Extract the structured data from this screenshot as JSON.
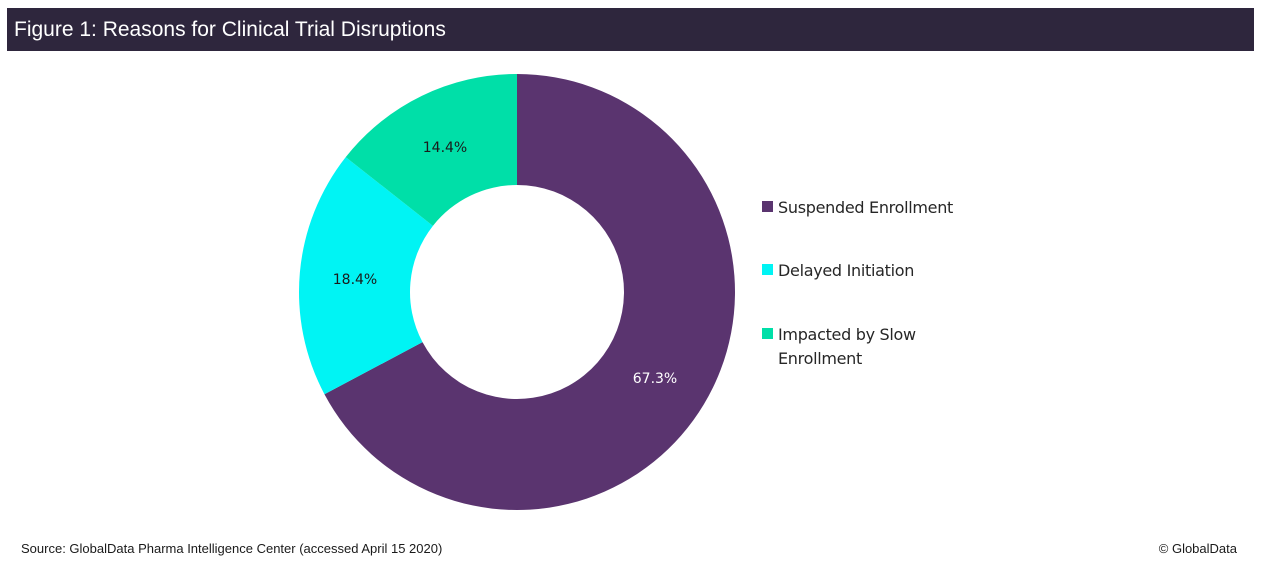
{
  "header": {
    "title": "Figure 1: Reasons for Clinical Trial Disruptions"
  },
  "chart_data": {
    "type": "pie",
    "variant": "donut",
    "title": "Figure 1: Reasons for Clinical Trial Disruptions",
    "categories": [
      "Suspended Enrollment",
      "Delayed Initiation",
      "Impacted by Slow Enrollment"
    ],
    "values": [
      67.3,
      18.4,
      14.4
    ],
    "unit": "%",
    "data_labels": [
      "67.3%",
      "18.4%",
      "14.4%"
    ],
    "colors": [
      "#5a346f",
      "#00f4f4",
      "#00dfa8"
    ],
    "label_colors": [
      "#ffffff",
      "#1a1a1a",
      "#1a1a1a"
    ],
    "start_angle": "12 o'clock, clockwise",
    "legend_position": "right"
  },
  "legend": {
    "items": [
      {
        "label": "Suspended Enrollment",
        "color": "#5a346f"
      },
      {
        "label": "Delayed Initiation",
        "color": "#00f4f4"
      },
      {
        "label": "Impacted by Slow Enrollment",
        "color": "#00dfa8"
      }
    ]
  },
  "footer": {
    "source": "Source: GlobalData Pharma Intelligence Center (accessed April 15 2020)",
    "copyright": "© GlobalData"
  }
}
